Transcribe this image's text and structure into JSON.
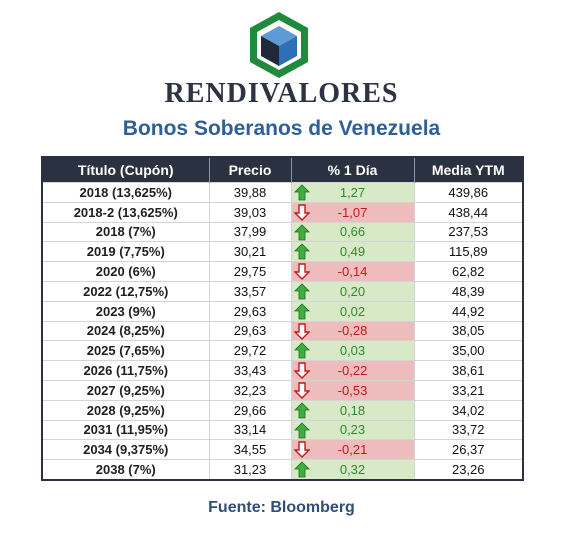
{
  "header": {
    "brand": "RENDIVALORES",
    "subtitle": "Bonos Soberanos de Venezuela"
  },
  "table": {
    "columns": [
      "Título (Cupón)",
      "Precio",
      "% 1 Día",
      "Media YTM"
    ],
    "rows": [
      {
        "title": "2018 (13,625%)",
        "price": "39,88",
        "change": "1,27",
        "direction": "up",
        "ytm": "439,86"
      },
      {
        "title": "2018-2 (13,625%)",
        "price": "39,03",
        "change": "-1,07",
        "direction": "down",
        "ytm": "438,44"
      },
      {
        "title": "2018 (7%)",
        "price": "37,99",
        "change": "0,66",
        "direction": "up",
        "ytm": "237,53"
      },
      {
        "title": "2019 (7,75%)",
        "price": "30,21",
        "change": "0,49",
        "direction": "up",
        "ytm": "115,89"
      },
      {
        "title": "2020 (6%)",
        "price": "29,75",
        "change": "-0,14",
        "direction": "down",
        "ytm": "62,82"
      },
      {
        "title": "2022 (12,75%)",
        "price": "33,57",
        "change": "0,20",
        "direction": "up",
        "ytm": "48,39"
      },
      {
        "title": "2023 (9%)",
        "price": "29,63",
        "change": "0,02",
        "direction": "up",
        "ytm": "44,92"
      },
      {
        "title": "2024 (8,25%)",
        "price": "29,63",
        "change": "-0,28",
        "direction": "down",
        "ytm": "38,05"
      },
      {
        "title": "2025 (7,65%)",
        "price": "29,72",
        "change": "0,03",
        "direction": "up",
        "ytm": "35,00"
      },
      {
        "title": "2026 (11,75%)",
        "price": "33,43",
        "change": "-0,22",
        "direction": "down",
        "ytm": "38,61"
      },
      {
        "title": "2027 (9,25%)",
        "price": "32,23",
        "change": "-0,53",
        "direction": "down",
        "ytm": "33,21"
      },
      {
        "title": "2028 (9,25%)",
        "price": "29,66",
        "change": "0,18",
        "direction": "up",
        "ytm": "34,02"
      },
      {
        "title": "2031 (11,95%)",
        "price": "33,14",
        "change": "0,23",
        "direction": "up",
        "ytm": "33,72"
      },
      {
        "title": "2034 (9,375%)",
        "price": "34,55",
        "change": "-0,21",
        "direction": "down",
        "ytm": "26,37"
      },
      {
        "title": "2038 (7%)",
        "price": "31,23",
        "change": "0,32",
        "direction": "up",
        "ytm": "23,26"
      }
    ]
  },
  "footer": {
    "source": "Fuente: Bloomberg"
  },
  "colors": {
    "header_bg": "#2a3140",
    "up_bg": "#d8e9c8",
    "up_text": "#2e8a2e",
    "down_bg": "#eebcbc",
    "down_text": "#c11a1a",
    "subtitle": "#2f5f96",
    "logo_green": "#1f8a3c",
    "logo_blue": "#3d7fc1"
  },
  "icons": {
    "up": "green-up-arrow-icon",
    "down": "red-down-arrow-icon",
    "logo": "green-hexagon-blue-cube-logo"
  }
}
